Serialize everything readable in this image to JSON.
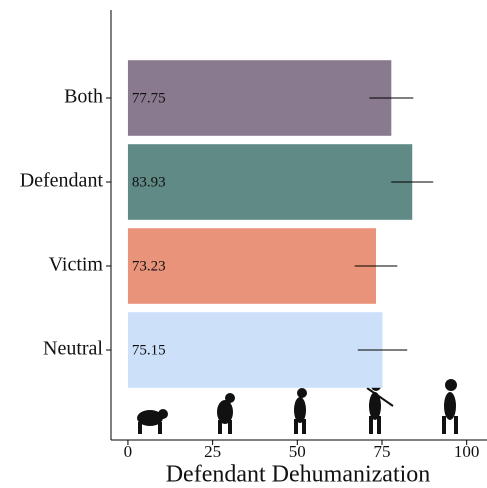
{
  "chart_data": {
    "type": "bar",
    "orientation": "horizontal",
    "xlabel": "Defendant Dehumanization",
    "categories": [
      "Both",
      "Defendant",
      "Victim",
      "Neutral"
    ],
    "values": [
      77.75,
      83.93,
      73.23,
      75.15
    ],
    "errors": [
      6.5,
      6.2,
      6.3,
      7.3
    ],
    "colors": [
      "#8a7a8f",
      "#5f8a85",
      "#e8937a",
      "#cce0fa"
    ],
    "xlim": [
      -5,
      106
    ],
    "xticks": [
      0,
      25,
      50,
      75,
      100
    ]
  }
}
